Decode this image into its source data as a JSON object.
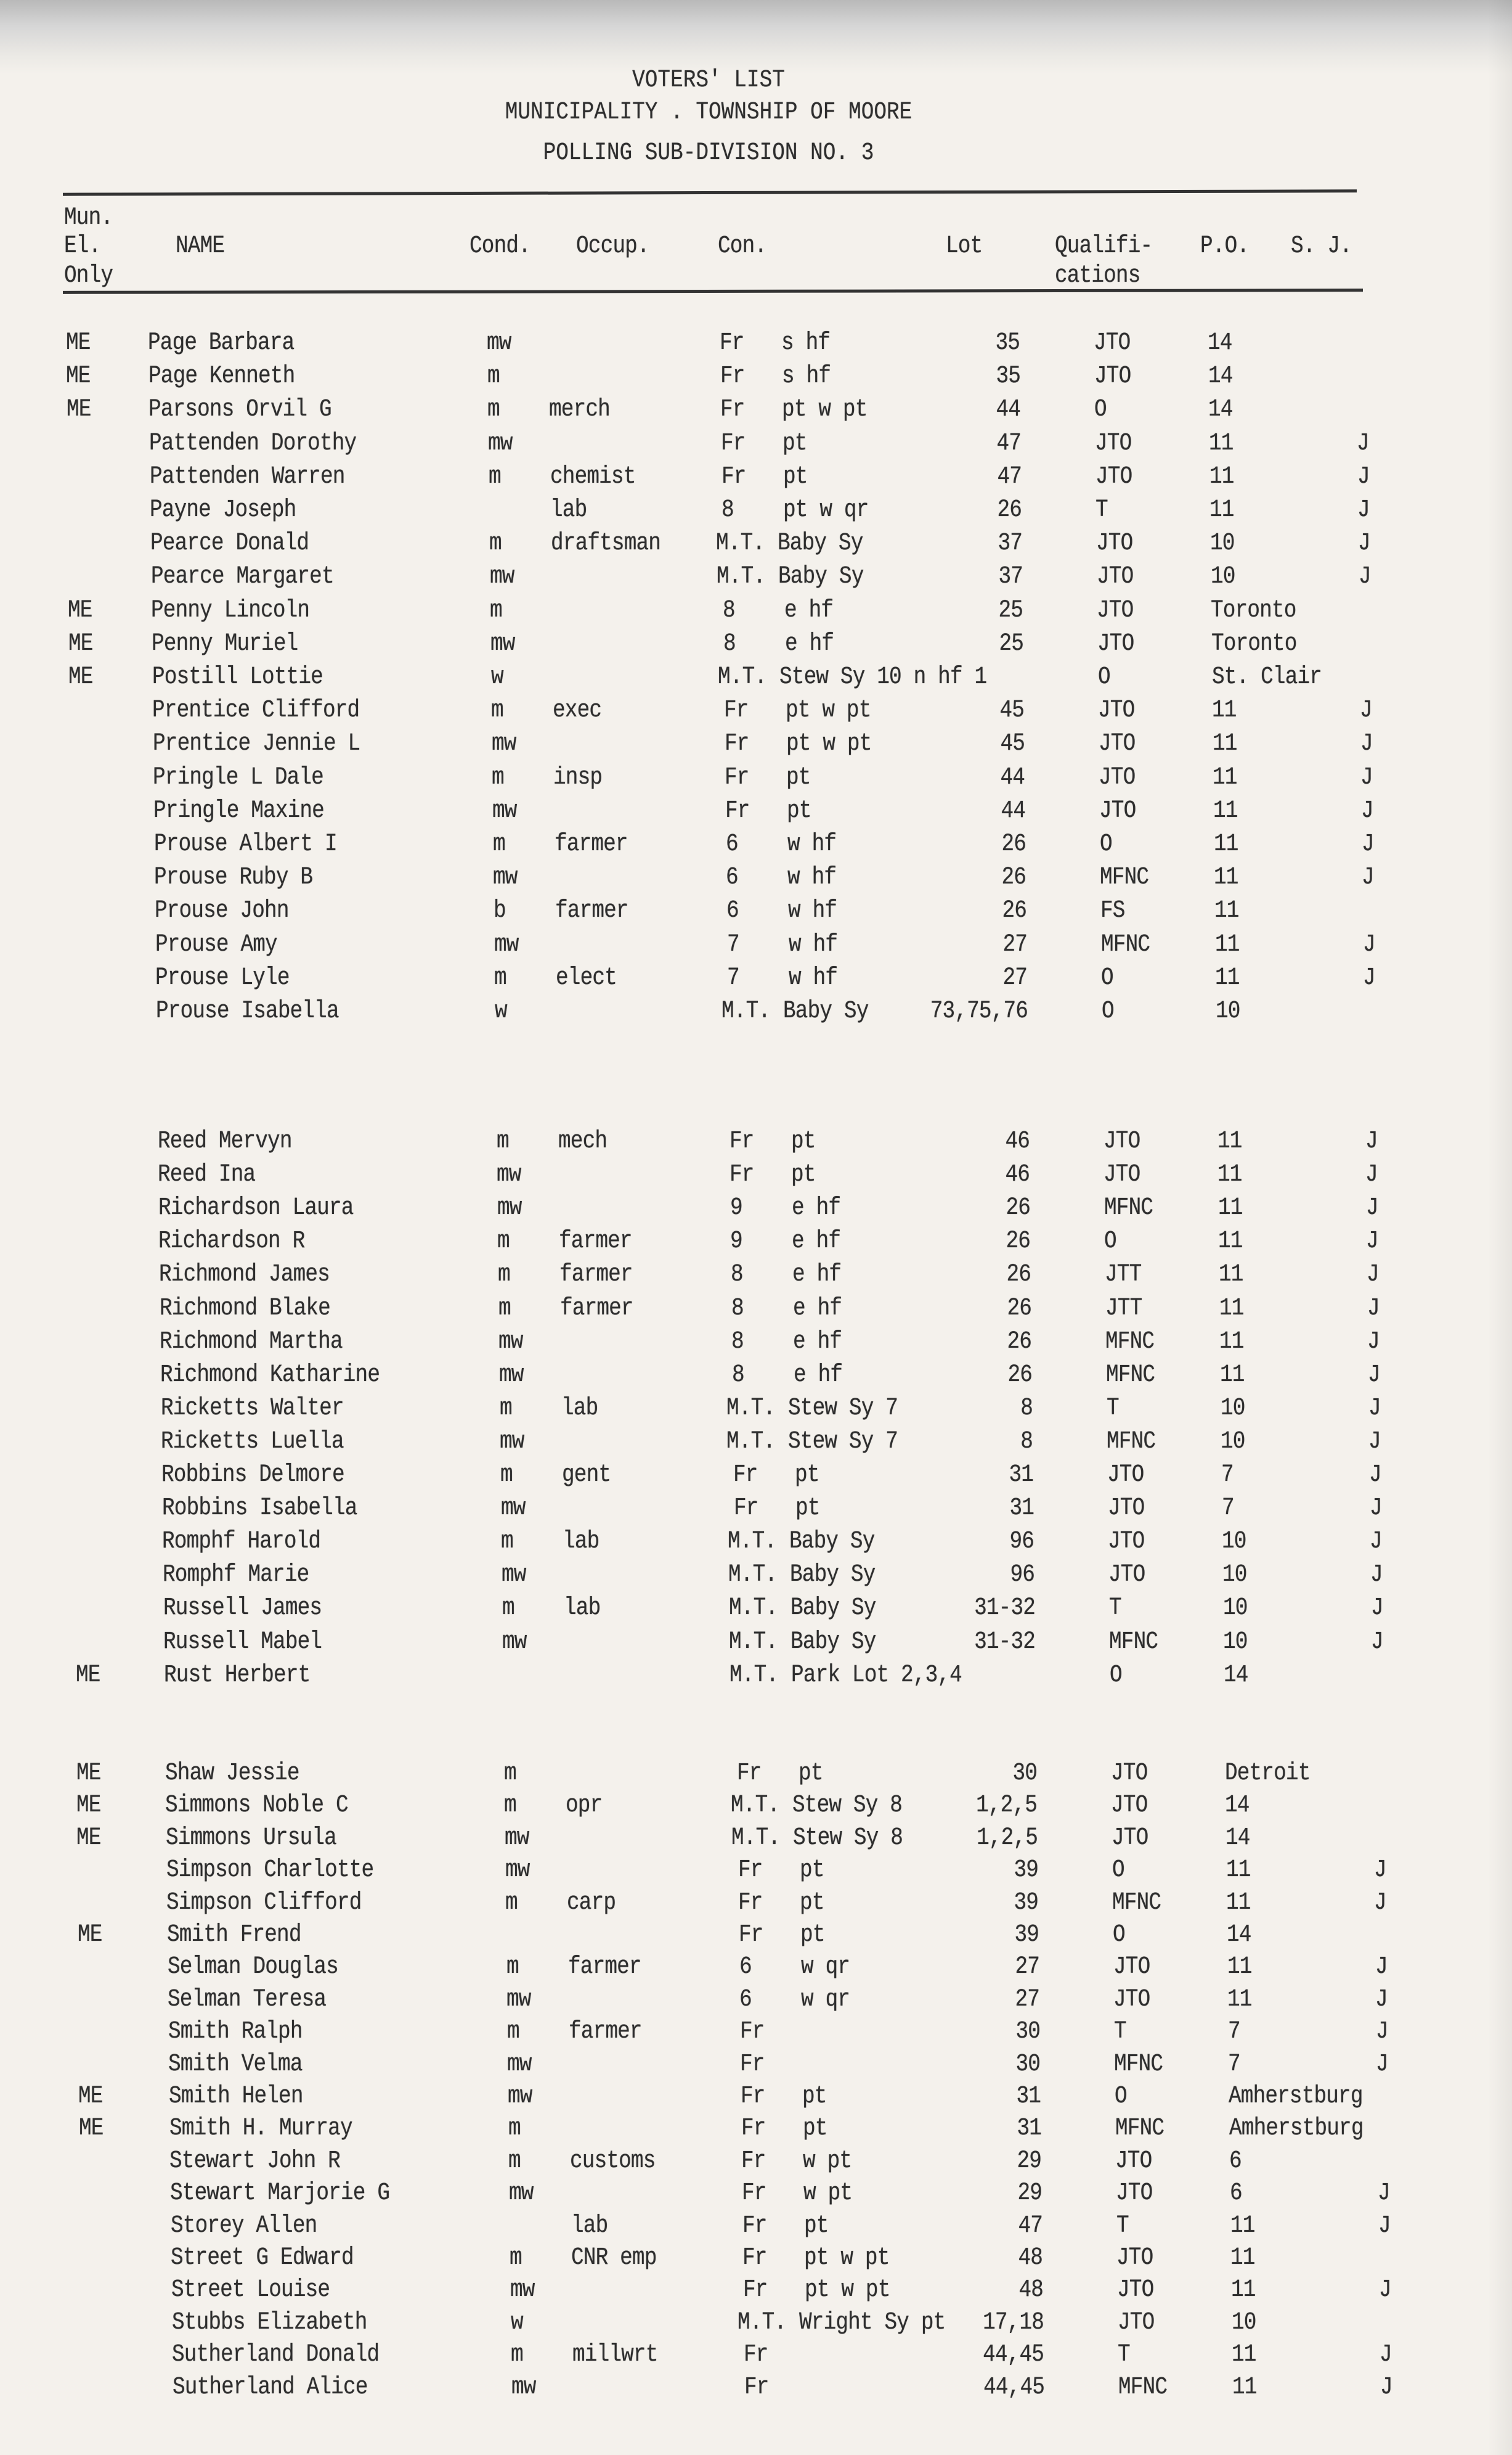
{
  "header": {
    "title": "VOTERS' LIST",
    "municipality": "MUNICIPALITY . TOWNSHIP OF MOORE",
    "subdivision": "POLLING SUB-DIVISION NO. 3"
  },
  "columns": {
    "mun_1": "Mun.",
    "mun_2": "El.",
    "mun_3": "Only",
    "name": "NAME",
    "cond": "Cond.",
    "occup": "Occup.",
    "con": "Con.",
    "lot": "Lot",
    "qual_1": "Qualifi-",
    "qual_2": "cations",
    "po": "P.O.",
    "sj": "S. J."
  },
  "blocks": [
    [
      {
        "me": "ME",
        "name": "Page Barbara",
        "cond": "mw",
        "occup": "",
        "con": "Fr",
        "desc": "s hf",
        "lot": "35",
        "qual": "JTO",
        "po": "14",
        "sj": ""
      },
      {
        "me": "ME",
        "name": "Page Kenneth",
        "cond": "m",
        "occup": "",
        "con": "Fr",
        "desc": "s hf",
        "lot": "35",
        "qual": "JTO",
        "po": "14",
        "sj": ""
      },
      {
        "me": "ME",
        "name": "Parsons Orvil G",
        "cond": "m",
        "occup": "merch",
        "con": "Fr",
        "desc": "pt w pt",
        "lot": "44",
        "qual": "O",
        "po": "14",
        "sj": ""
      },
      {
        "me": "",
        "name": "Pattenden Dorothy",
        "cond": "mw",
        "occup": "",
        "con": "Fr",
        "desc": "pt",
        "lot": "47",
        "qual": "JTO",
        "po": "11",
        "sj": "J"
      },
      {
        "me": "",
        "name": "Pattenden Warren",
        "cond": "m",
        "occup": "chemist",
        "con": "Fr",
        "desc": "pt",
        "lot": "47",
        "qual": "JTO",
        "po": "11",
        "sj": "J"
      },
      {
        "me": "",
        "name": "Payne Joseph",
        "cond": "",
        "occup": "lab",
        "con": "8",
        "desc": "pt w qr",
        "lot": "26",
        "qual": "T",
        "po": "11",
        "sj": "J"
      },
      {
        "me": "",
        "name": "Pearce Donald",
        "cond": "m",
        "occup": "draftsman",
        "con": "M.T.",
        "desc": "Baby Sy",
        "lot": "37",
        "qual": "JTO",
        "po": "10",
        "sj": "J"
      },
      {
        "me": "",
        "name": "Pearce Margaret",
        "cond": "mw",
        "occup": "",
        "con": "M.T.",
        "desc": "Baby Sy",
        "lot": "37",
        "qual": "JTO",
        "po": "10",
        "sj": "J"
      },
      {
        "me": "ME",
        "name": "Penny Lincoln",
        "cond": "m",
        "occup": "",
        "con": "8",
        "desc": "e hf",
        "lot": "25",
        "qual": "JTO",
        "po": "Toronto",
        "sj": ""
      },
      {
        "me": "ME",
        "name": "Penny Muriel",
        "cond": "mw",
        "occup": "",
        "con": "8",
        "desc": "e hf",
        "lot": "25",
        "qual": "JTO",
        "po": "Toronto",
        "sj": ""
      },
      {
        "me": "ME",
        "name": "Postill Lottie",
        "cond": "w",
        "occup": "",
        "con": "M.T.",
        "desc": "Stew Sy 10 n hf 1",
        "lot": "",
        "qual": "O",
        "po": "St. Clair",
        "sj": ""
      },
      {
        "me": "",
        "name": "Prentice Clifford",
        "cond": "m",
        "occup": "exec",
        "con": "Fr",
        "desc": "pt w pt",
        "lot": "45",
        "qual": "JTO",
        "po": "11",
        "sj": "J"
      },
      {
        "me": "",
        "name": "Prentice Jennie L",
        "cond": "mw",
        "occup": "",
        "con": "Fr",
        "desc": "pt w pt",
        "lot": "45",
        "qual": "JTO",
        "po": "11",
        "sj": "J"
      },
      {
        "me": "",
        "name": "Pringle L Dale",
        "cond": "m",
        "occup": "insp",
        "con": "Fr",
        "desc": "pt",
        "lot": "44",
        "qual": "JTO",
        "po": "11",
        "sj": "J"
      },
      {
        "me": "",
        "name": "Pringle Maxine",
        "cond": "mw",
        "occup": "",
        "con": "Fr",
        "desc": "pt",
        "lot": "44",
        "qual": "JTO",
        "po": "11",
        "sj": "J"
      },
      {
        "me": "",
        "name": "Prouse Albert I",
        "cond": "m",
        "occup": "farmer",
        "con": "6",
        "desc": "w hf",
        "lot": "26",
        "qual": "O",
        "po": "11",
        "sj": "J"
      },
      {
        "me": "",
        "name": "Prouse Ruby B",
        "cond": "mw",
        "occup": "",
        "con": "6",
        "desc": "w hf",
        "lot": "26",
        "qual": "MFNC",
        "po": "11",
        "sj": "J"
      },
      {
        "me": "",
        "name": "Prouse John",
        "cond": "b",
        "occup": "farmer",
        "con": "6",
        "desc": "w hf",
        "lot": "26",
        "qual": "FS",
        "po": "11",
        "sj": ""
      },
      {
        "me": "",
        "name": "Prouse Amy",
        "cond": "mw",
        "occup": "",
        "con": "7",
        "desc": "w hf",
        "lot": "27",
        "qual": "MFNC",
        "po": "11",
        "sj": "J"
      },
      {
        "me": "",
        "name": "Prouse Lyle",
        "cond": "m",
        "occup": "elect",
        "con": "7",
        "desc": "w hf",
        "lot": "27",
        "qual": "O",
        "po": "11",
        "sj": "J"
      },
      {
        "me": "",
        "name": "Prouse Isabella",
        "cond": "w",
        "occup": "",
        "con": "M.T.",
        "desc": "Baby Sy",
        "lot": "73,75,76",
        "qual": "O",
        "po": "10",
        "sj": ""
      }
    ],
    [
      {
        "me": "",
        "name": "Reed Mervyn",
        "cond": "m",
        "occup": "mech",
        "con": "Fr",
        "desc": "pt",
        "lot": "46",
        "qual": "JTO",
        "po": "11",
        "sj": "J"
      },
      {
        "me": "",
        "name": "Reed Ina",
        "cond": "mw",
        "occup": "",
        "con": "Fr",
        "desc": "pt",
        "lot": "46",
        "qual": "JTO",
        "po": "11",
        "sj": "J"
      },
      {
        "me": "",
        "name": "Richardson Laura",
        "cond": "mw",
        "occup": "",
        "con": "9",
        "desc": "e hf",
        "lot": "26",
        "qual": "MFNC",
        "po": "11",
        "sj": "J"
      },
      {
        "me": "",
        "name": "Richardson R",
        "cond": "m",
        "occup": "farmer",
        "con": "9",
        "desc": "e hf",
        "lot": "26",
        "qual": "O",
        "po": "11",
        "sj": "J"
      },
      {
        "me": "",
        "name": "Richmond James",
        "cond": "m",
        "occup": "farmer",
        "con": "8",
        "desc": "e hf",
        "lot": "26",
        "qual": "JTT",
        "po": "11",
        "sj": "J"
      },
      {
        "me": "",
        "name": "Richmond Blake",
        "cond": "m",
        "occup": "farmer",
        "con": "8",
        "desc": "e hf",
        "lot": "26",
        "qual": "JTT",
        "po": "11",
        "sj": "J"
      },
      {
        "me": "",
        "name": "Richmond Martha",
        "cond": "mw",
        "occup": "",
        "con": "8",
        "desc": "e hf",
        "lot": "26",
        "qual": "MFNC",
        "po": "11",
        "sj": "J"
      },
      {
        "me": "",
        "name": "Richmond Katharine",
        "cond": "mw",
        "occup": "",
        "con": "8",
        "desc": "e hf",
        "lot": "26",
        "qual": "MFNC",
        "po": "11",
        "sj": "J"
      },
      {
        "me": "",
        "name": "Ricketts Walter",
        "cond": "m",
        "occup": "lab",
        "con": "M.T.",
        "desc": "Stew Sy 7",
        "lot": "8",
        "qual": "T",
        "po": "10",
        "sj": "J"
      },
      {
        "me": "",
        "name": "Ricketts Luella",
        "cond": "mw",
        "occup": "",
        "con": "M.T.",
        "desc": "Stew Sy 7",
        "lot": "8",
        "qual": "MFNC",
        "po": "10",
        "sj": "J"
      },
      {
        "me": "",
        "name": "Robbins Delmore",
        "cond": "m",
        "occup": "gent",
        "con": "Fr",
        "desc": "pt",
        "lot": "31",
        "qual": "JTO",
        "po": "7",
        "sj": "J"
      },
      {
        "me": "",
        "name": "Robbins Isabella",
        "cond": "mw",
        "occup": "",
        "con": "Fr",
        "desc": "pt",
        "lot": "31",
        "qual": "JTO",
        "po": "7",
        "sj": "J"
      },
      {
        "me": "",
        "name": "Romphf Harold",
        "cond": "m",
        "occup": "lab",
        "con": "M.T.",
        "desc": "Baby Sy",
        "lot": "96",
        "qual": "JTO",
        "po": "10",
        "sj": "J"
      },
      {
        "me": "",
        "name": "Romphf Marie",
        "cond": "mw",
        "occup": "",
        "con": "M.T.",
        "desc": "Baby Sy",
        "lot": "96",
        "qual": "JTO",
        "po": "10",
        "sj": "J"
      },
      {
        "me": "",
        "name": "Russell James",
        "cond": "m",
        "occup": "lab",
        "con": "M.T.",
        "desc": "Baby Sy",
        "lot": "31-32",
        "qual": "T",
        "po": "10",
        "sj": "J"
      },
      {
        "me": "",
        "name": "Russell Mabel",
        "cond": "mw",
        "occup": "",
        "con": "M.T.",
        "desc": "Baby Sy",
        "lot": "31-32",
        "qual": "MFNC",
        "po": "10",
        "sj": "J"
      },
      {
        "me": "ME",
        "name": "Rust Herbert",
        "cond": "",
        "occup": "",
        "con": "M.T.",
        "desc": "Park Lot 2,3,4",
        "lot": "",
        "qual": "O",
        "po": "14",
        "sj": ""
      }
    ],
    [
      {
        "me": "ME",
        "name": "Shaw Jessie",
        "cond": "m",
        "occup": "",
        "con": "Fr",
        "desc": "pt",
        "lot": "30",
        "qual": "JTO",
        "po": "Detroit",
        "sj": ""
      },
      {
        "me": "ME",
        "name": "Simmons Noble C",
        "cond": "m",
        "occup": "opr",
        "con": "M.T.",
        "desc": "Stew Sy 8",
        "lot": "1,2,5",
        "qual": "JTO",
        "po": "14",
        "sj": ""
      },
      {
        "me": "ME",
        "name": "Simmons Ursula",
        "cond": "mw",
        "occup": "",
        "con": "M.T.",
        "desc": "Stew Sy 8",
        "lot": "1,2,5",
        "qual": "JTO",
        "po": "14",
        "sj": ""
      },
      {
        "me": "",
        "name": "Simpson Charlotte",
        "cond": "mw",
        "occup": "",
        "con": "Fr",
        "desc": "pt",
        "lot": "39",
        "qual": "O",
        "po": "11",
        "sj": "J"
      },
      {
        "me": "",
        "name": "Simpson Clifford",
        "cond": "m",
        "occup": "carp",
        "con": "Fr",
        "desc": "pt",
        "lot": "39",
        "qual": "MFNC",
        "po": "11",
        "sj": "J"
      },
      {
        "me": "ME",
        "name": "Smith Frend",
        "cond": "",
        "occup": "",
        "con": "Fr",
        "desc": "pt",
        "lot": "39",
        "qual": "O",
        "po": "14",
        "sj": ""
      },
      {
        "me": "",
        "name": "Selman Douglas",
        "cond": "m",
        "occup": "farmer",
        "con": "6",
        "desc": "w qr",
        "lot": "27",
        "qual": "JTO",
        "po": "11",
        "sj": "J"
      },
      {
        "me": "",
        "name": "Selman Teresa",
        "cond": "mw",
        "occup": "",
        "con": "6",
        "desc": "w qr",
        "lot": "27",
        "qual": "JTO",
        "po": "11",
        "sj": "J"
      },
      {
        "me": "",
        "name": "Smith Ralph",
        "cond": "m",
        "occup": "farmer",
        "con": "Fr",
        "desc": "",
        "lot": "30",
        "qual": "T",
        "po": "7",
        "sj": "J"
      },
      {
        "me": "",
        "name": "Smith Velma",
        "cond": "mw",
        "occup": "",
        "con": "Fr",
        "desc": "",
        "lot": "30",
        "qual": "MFNC",
        "po": "7",
        "sj": "J"
      },
      {
        "me": "ME",
        "name": "Smith Helen",
        "cond": "mw",
        "occup": "",
        "con": "Fr",
        "desc": "pt",
        "lot": "31",
        "qual": "O",
        "po": "Amherstburg",
        "sj": ""
      },
      {
        "me": "ME",
        "name": "Smith H. Murray",
        "cond": "m",
        "occup": "",
        "con": "Fr",
        "desc": "pt",
        "lot": "31",
        "qual": "MFNC",
        "po": "Amherstburg",
        "sj": ""
      },
      {
        "me": "",
        "name": "Stewart John R",
        "cond": "m",
        "occup": "customs",
        "con": "Fr",
        "desc": "w pt",
        "lot": "29",
        "qual": "JTO",
        "po": "6",
        "sj": ""
      },
      {
        "me": "",
        "name": "Stewart Marjorie G",
        "cond": "mw",
        "occup": "",
        "con": "Fr",
        "desc": "w pt",
        "lot": "29",
        "qual": "JTO",
        "po": "6",
        "sj": "J"
      },
      {
        "me": "",
        "name": "Storey Allen",
        "cond": "",
        "occup": "lab",
        "con": "Fr",
        "desc": "pt",
        "lot": "47",
        "qual": "T",
        "po": "11",
        "sj": "J"
      },
      {
        "me": "",
        "name": "Street G Edward",
        "cond": "m",
        "occup": "CNR emp",
        "con": "Fr",
        "desc": "pt w pt",
        "lot": "48",
        "qual": "JTO",
        "po": "11",
        "sj": ""
      },
      {
        "me": "",
        "name": "Street Louise",
        "cond": "mw",
        "occup": "",
        "con": "Fr",
        "desc": "pt w pt",
        "lot": "48",
        "qual": "JTO",
        "po": "11",
        "sj": "J"
      },
      {
        "me": "",
        "name": "Stubbs Elizabeth",
        "cond": "w",
        "occup": "",
        "con": "M.T.",
        "desc": "Wright Sy pt",
        "lot": "17,18",
        "qual": "JTO",
        "po": "10",
        "sj": ""
      },
      {
        "me": "",
        "name": "Sutherland Donald",
        "cond": "m",
        "occup": "millwrt",
        "con": "Fr",
        "desc": "",
        "lot": "44,45",
        "qual": "T",
        "po": "11",
        "sj": "J"
      },
      {
        "me": "",
        "name": "Sutherland Alice",
        "cond": "mw",
        "occup": "",
        "con": "Fr",
        "desc": "",
        "lot": "44,45",
        "qual": "MFNC",
        "po": "11",
        "sj": "J"
      }
    ]
  ]
}
